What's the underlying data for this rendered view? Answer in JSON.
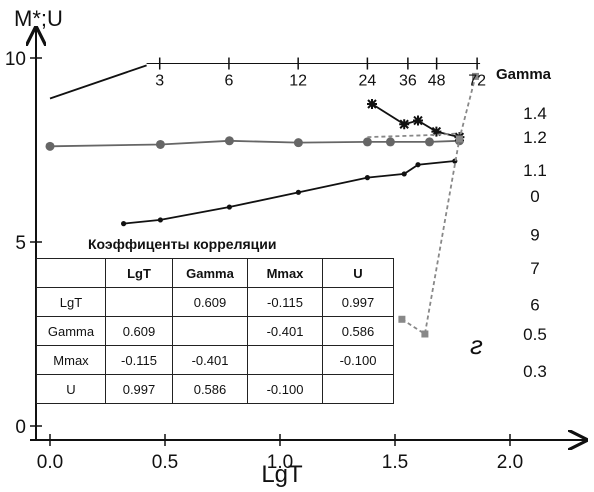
{
  "chart_data": {
    "type": "line",
    "xlabel": "LgT",
    "ylabel": "M*;U",
    "xlim": [
      -0.05,
      2.3
    ],
    "ylim": [
      0,
      10.3
    ],
    "x_ticks": [
      "0.0",
      "0.5",
      "1.0",
      "1.5",
      "2.0"
    ],
    "x_tick_values": [
      0.0,
      0.5,
      1.0,
      1.5,
      2.0
    ],
    "y_ticks": [
      "0",
      "5",
      "10"
    ],
    "y_tick_values": [
      0,
      5,
      10
    ],
    "top_axis_ticks": [
      "3",
      "6",
      "12",
      "24",
      "36",
      "48",
      "72"
    ],
    "top_axis_values": [
      0.477,
      0.778,
      1.079,
      1.38,
      1.556,
      1.681,
      1.857
    ],
    "gamma_title": "Gamma",
    "gamma_labels": [
      "1.4",
      "1.2",
      "1.1",
      "0",
      "9",
      "7",
      "6",
      "0.5",
      "0.3"
    ],
    "gamma_label_y": [
      8.5,
      7.85,
      6.95,
      6.25,
      5.2,
      4.3,
      3.3,
      2.5,
      1.5
    ],
    "annotation": "г",
    "series": [
      {
        "color": "#111111",
        "marker": "none",
        "dash": "none",
        "x": [
          0.0,
          0.42
        ],
        "y": [
          8.9,
          9.8
        ]
      },
      {
        "color": "#666666",
        "marker": "circle",
        "dash": "none",
        "x": [
          0.0,
          0.48,
          0.78,
          1.08,
          1.38,
          1.48,
          1.65,
          1.78
        ],
        "y": [
          7.6,
          7.65,
          7.75,
          7.7,
          7.72,
          7.72,
          7.72,
          7.75
        ]
      },
      {
        "color": "#111111",
        "marker": "dot",
        "dash": "none",
        "x": [
          0.32,
          0.48,
          0.78,
          1.08,
          1.38,
          1.54,
          1.6,
          1.76
        ],
        "y": [
          5.5,
          5.6,
          5.95,
          6.35,
          6.75,
          6.85,
          7.1,
          7.2
        ]
      },
      {
        "color": "#111111",
        "marker": "star",
        "dash": "none",
        "x": [
          1.4,
          1.54,
          1.6,
          1.68,
          1.78
        ],
        "y": [
          8.75,
          8.2,
          8.3,
          8.0,
          7.85
        ]
      },
      {
        "color": "#888888",
        "marker": "none",
        "dash": "4,3",
        "x": [
          1.38,
          1.63,
          1.78
        ],
        "y": [
          7.85,
          7.9,
          7.95
        ]
      },
      {
        "color": "#888888",
        "marker": "square",
        "dash": "4,3",
        "x": [
          1.53,
          1.63,
          1.78,
          1.85
        ],
        "y": [
          2.9,
          2.5,
          7.8,
          9.5
        ]
      }
    ],
    "correlation_table": {
      "title": "Коэффиценты корреляции",
      "headers": [
        "",
        "LgT",
        "Gamma",
        "Mmax",
        "U"
      ],
      "rows": [
        [
          "LgT",
          "",
          "0.609",
          "-0.115",
          "0.997"
        ],
        [
          "Gamma",
          "0.609",
          "",
          "-0.401",
          "0.586"
        ],
        [
          "Mmax",
          "-0.115",
          "-0.401",
          "",
          "-0.100"
        ],
        [
          "U",
          "0.997",
          "0.586",
          "-0.100",
          ""
        ]
      ]
    }
  }
}
